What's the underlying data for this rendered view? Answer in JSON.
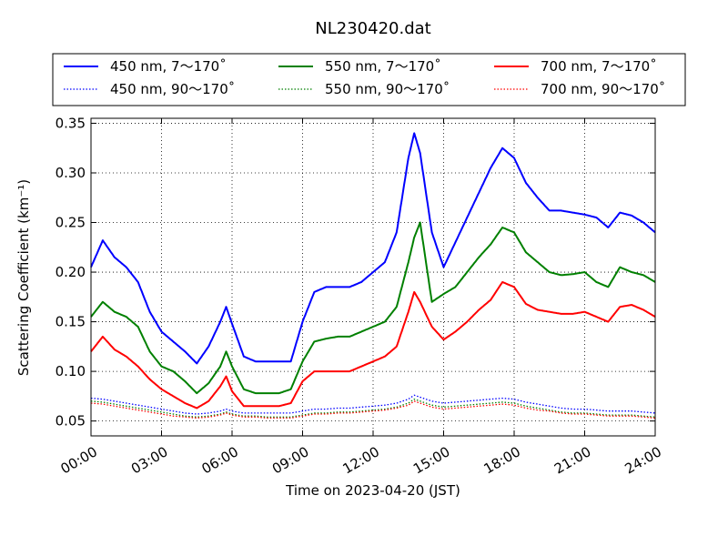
{
  "chart_data": {
    "type": "line",
    "title": "NL230420.dat",
    "xlabel": "Time on 2023-04-20 (JST)",
    "ylabel": "Scattering Coefficient (km⁻¹)",
    "x_unit": "hours",
    "xlim": [
      0,
      24
    ],
    "ylim": [
      0.035,
      0.355
    ],
    "x_ticks": [
      {
        "value": 0,
        "label": "00:00"
      },
      {
        "value": 3,
        "label": "03:00"
      },
      {
        "value": 6,
        "label": "06:00"
      },
      {
        "value": 9,
        "label": "09:00"
      },
      {
        "value": 12,
        "label": "12:00"
      },
      {
        "value": 15,
        "label": "15:00"
      },
      {
        "value": 18,
        "label": "18:00"
      },
      {
        "value": 21,
        "label": "21:00"
      },
      {
        "value": 24,
        "label": "24:00"
      }
    ],
    "y_ticks": [
      {
        "value": 0.05,
        "label": "0.05"
      },
      {
        "value": 0.1,
        "label": "0.10"
      },
      {
        "value": 0.15,
        "label": "0.15"
      },
      {
        "value": 0.2,
        "label": "0.20"
      },
      {
        "value": 0.25,
        "label": "0.25"
      },
      {
        "value": 0.3,
        "label": "0.30"
      },
      {
        "value": 0.35,
        "label": "0.35"
      }
    ],
    "grid": true,
    "legend_placement": "top (outside plot area, 3 columns)",
    "x": [
      0,
      0.5,
      1,
      1.5,
      2,
      2.5,
      3,
      3.5,
      4,
      4.5,
      5,
      5.5,
      5.75,
      6,
      6.5,
      7,
      7.5,
      8,
      8.5,
      9,
      9.5,
      10,
      10.5,
      11,
      11.5,
      12,
      12.5,
      13,
      13.5,
      13.75,
      14,
      14.5,
      15,
      15.5,
      16,
      16.5,
      17,
      17.5,
      18,
      18.5,
      19,
      19.5,
      20,
      20.5,
      21,
      21.5,
      22,
      22.5,
      23,
      23.5,
      24
    ],
    "series": [
      {
        "name": "450 nm, 7～170˚",
        "color": "#0000ff",
        "style": "solid",
        "values": [
          0.205,
          0.232,
          0.215,
          0.205,
          0.19,
          0.16,
          0.14,
          0.13,
          0.12,
          0.108,
          0.125,
          0.15,
          0.165,
          0.148,
          0.115,
          0.11,
          0.11,
          0.11,
          0.11,
          0.15,
          0.18,
          0.185,
          0.185,
          0.185,
          0.19,
          0.2,
          0.21,
          0.24,
          0.315,
          0.34,
          0.32,
          0.24,
          0.205,
          0.23,
          0.255,
          0.28,
          0.305,
          0.325,
          0.315,
          0.29,
          0.275,
          0.262,
          0.262,
          0.26,
          0.258,
          0.255,
          0.245,
          0.26,
          0.257,
          0.25,
          0.24
        ]
      },
      {
        "name": "550 nm, 7～170˚",
        "color": "#008000",
        "style": "solid",
        "values": [
          0.155,
          0.17,
          0.16,
          0.155,
          0.145,
          0.12,
          0.105,
          0.1,
          0.09,
          0.078,
          0.088,
          0.105,
          0.12,
          0.105,
          0.082,
          0.078,
          0.078,
          0.078,
          0.082,
          0.11,
          0.13,
          0.133,
          0.135,
          0.135,
          0.14,
          0.145,
          0.15,
          0.165,
          0.21,
          0.235,
          0.25,
          0.17,
          0.178,
          0.185,
          0.2,
          0.215,
          0.228,
          0.245,
          0.24,
          0.22,
          0.21,
          0.2,
          0.197,
          0.198,
          0.2,
          0.19,
          0.185,
          0.205,
          0.2,
          0.197,
          0.19
        ]
      },
      {
        "name": "700 nm, 7～170˚",
        "color": "#ff0000",
        "style": "solid",
        "values": [
          0.12,
          0.135,
          0.122,
          0.115,
          0.105,
          0.092,
          0.082,
          0.075,
          0.068,
          0.063,
          0.07,
          0.085,
          0.095,
          0.08,
          0.065,
          0.065,
          0.065,
          0.065,
          0.068,
          0.09,
          0.1,
          0.1,
          0.1,
          0.1,
          0.105,
          0.11,
          0.115,
          0.125,
          0.16,
          0.18,
          0.17,
          0.145,
          0.132,
          0.14,
          0.15,
          0.162,
          0.172,
          0.19,
          0.185,
          0.168,
          0.162,
          0.16,
          0.158,
          0.158,
          0.16,
          0.155,
          0.15,
          0.165,
          0.167,
          0.162,
          0.155
        ]
      },
      {
        "name": "450 nm, 90～170˚",
        "color": "#0000ff",
        "style": "dotted",
        "values": [
          0.073,
          0.072,
          0.07,
          0.068,
          0.066,
          0.064,
          0.062,
          0.06,
          0.058,
          0.057,
          0.058,
          0.06,
          0.062,
          0.06,
          0.058,
          0.058,
          0.058,
          0.058,
          0.058,
          0.06,
          0.062,
          0.062,
          0.063,
          0.063,
          0.064,
          0.065,
          0.066,
          0.068,
          0.072,
          0.076,
          0.074,
          0.07,
          0.068,
          0.069,
          0.07,
          0.071,
          0.072,
          0.073,
          0.072,
          0.069,
          0.067,
          0.065,
          0.063,
          0.062,
          0.062,
          0.061,
          0.06,
          0.06,
          0.06,
          0.059,
          0.058
        ]
      },
      {
        "name": "550 nm, 90～170˚",
        "color": "#008000",
        "style": "dotted",
        "values": [
          0.07,
          0.069,
          0.067,
          0.065,
          0.063,
          0.061,
          0.059,
          0.057,
          0.055,
          0.054,
          0.055,
          0.057,
          0.059,
          0.057,
          0.055,
          0.055,
          0.054,
          0.054,
          0.054,
          0.056,
          0.058,
          0.058,
          0.059,
          0.059,
          0.06,
          0.061,
          0.062,
          0.064,
          0.068,
          0.072,
          0.07,
          0.066,
          0.064,
          0.065,
          0.066,
          0.067,
          0.068,
          0.069,
          0.068,
          0.065,
          0.063,
          0.061,
          0.059,
          0.058,
          0.058,
          0.057,
          0.056,
          0.056,
          0.056,
          0.055,
          0.054
        ]
      },
      {
        "name": "700 nm, 90～170˚",
        "color": "#ff0000",
        "style": "dotted",
        "values": [
          0.068,
          0.067,
          0.065,
          0.063,
          0.061,
          0.059,
          0.057,
          0.055,
          0.054,
          0.053,
          0.054,
          0.056,
          0.058,
          0.056,
          0.054,
          0.054,
          0.053,
          0.053,
          0.053,
          0.055,
          0.057,
          0.057,
          0.058,
          0.058,
          0.059,
          0.06,
          0.061,
          0.063,
          0.066,
          0.07,
          0.068,
          0.064,
          0.062,
          0.063,
          0.064,
          0.065,
          0.066,
          0.067,
          0.066,
          0.063,
          0.061,
          0.06,
          0.058,
          0.057,
          0.057,
          0.056,
          0.055,
          0.055,
          0.055,
          0.054,
          0.053
        ]
      }
    ]
  }
}
